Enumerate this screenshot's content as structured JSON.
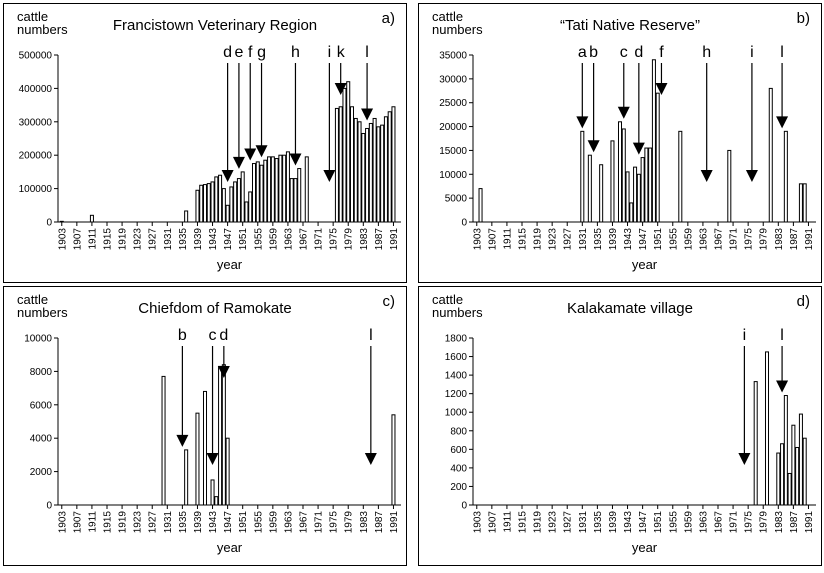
{
  "chart_data": [
    {
      "type": "bar",
      "title": "Francistown Veterinary Region",
      "panel": "a)",
      "ylabel": [
        "cattle",
        "numbers"
      ],
      "xlabel": "year",
      "x": [
        1903,
        1911,
        1936,
        1939,
        1940,
        1941,
        1942,
        1943,
        1944,
        1945,
        1946,
        1947,
        1948,
        1949,
        1950,
        1951,
        1952,
        1953,
        1954,
        1955,
        1956,
        1957,
        1958,
        1959,
        1960,
        1961,
        1962,
        1963,
        1964,
        1965,
        1966,
        1968,
        1976,
        1977,
        1978,
        1979,
        1980,
        1981,
        1982,
        1983,
        1984,
        1985,
        1986,
        1987,
        1988,
        1989,
        1990,
        1991
      ],
      "values": [
        2000,
        20000,
        33000,
        95000,
        110000,
        112000,
        115000,
        120000,
        135000,
        140000,
        100000,
        50000,
        105000,
        120000,
        130000,
        150000,
        60000,
        90000,
        175000,
        180000,
        170000,
        185000,
        195000,
        195000,
        190000,
        200000,
        200000,
        210000,
        130000,
        130000,
        160000,
        195000,
        340000,
        345000,
        400000,
        420000,
        345000,
        310000,
        300000,
        265000,
        280000,
        295000,
        310000,
        285000,
        290000,
        315000,
        330000,
        345000
      ],
      "xlim": [
        1902,
        1993
      ],
      "xticks": [
        1903,
        1907,
        1911,
        1915,
        1919,
        1923,
        1927,
        1931,
        1935,
        1939,
        1943,
        1947,
        1951,
        1955,
        1959,
        1963,
        1967,
        1971,
        1975,
        1979,
        1983,
        1987,
        1991
      ],
      "ylim": [
        0,
        500000
      ],
      "yticks": [
        0,
        100000,
        200000,
        300000,
        400000,
        500000
      ],
      "annotations": [
        {
          "label": "d",
          "x": 1947
        },
        {
          "label": "e",
          "x": 1950
        },
        {
          "label": "f",
          "x": 1953
        },
        {
          "label": "g",
          "x": 1956
        },
        {
          "label": "h",
          "x": 1965
        },
        {
          "label": "i",
          "x": 1974
        },
        {
          "label": "k",
          "x": 1977
        },
        {
          "label": "l",
          "x": 1984
        }
      ]
    },
    {
      "type": "bar",
      "title": "“Tati Native Reserve”",
      "panel": "b)",
      "ylabel": [
        "cattle",
        "numbers"
      ],
      "xlabel": "year",
      "x": [
        1904,
        1931,
        1933,
        1936,
        1939,
        1941,
        1942,
        1943,
        1944,
        1945,
        1946,
        1947,
        1948,
        1949,
        1950,
        1951,
        1957,
        1970,
        1981,
        1985,
        1989,
        1990
      ],
      "values": [
        7000,
        19000,
        14000,
        12000,
        17000,
        21000,
        19500,
        10500,
        4000,
        11500,
        10000,
        13500,
        15500,
        15500,
        34000,
        27000,
        19000,
        15000,
        28000,
        19000,
        8000,
        8000
      ],
      "xlim": [
        1902,
        1993
      ],
      "xticks": [
        1903,
        1907,
        1911,
        1915,
        1919,
        1923,
        1927,
        1931,
        1935,
        1939,
        1943,
        1947,
        1951,
        1955,
        1959,
        1963,
        1967,
        1971,
        1975,
        1979,
        1983,
        1987,
        1991
      ],
      "ylim": [
        0,
        35000
      ],
      "yticks": [
        0,
        5000,
        10000,
        15000,
        20000,
        25000,
        30000,
        35000
      ],
      "annotations": [
        {
          "label": "a",
          "x": 1931
        },
        {
          "label": "b",
          "x": 1934
        },
        {
          "label": "c",
          "x": 1942
        },
        {
          "label": "d",
          "x": 1946
        },
        {
          "label": "f",
          "x": 1952
        },
        {
          "label": "h",
          "x": 1964
        },
        {
          "label": "i",
          "x": 1976
        },
        {
          "label": "l",
          "x": 1984
        }
      ]
    },
    {
      "type": "bar",
      "title": "Chiefdom of Ramokate",
      "panel": "c)",
      "ylabel": [
        "cattle",
        "numbers"
      ],
      "xlabel": "year",
      "x": [
        1930,
        1936,
        1939,
        1941,
        1943,
        1944,
        1945,
        1946,
        1947,
        1991
      ],
      "values": [
        7700,
        3300,
        5500,
        6800,
        1500,
        500,
        8300,
        8400,
        4000,
        5400
      ],
      "xlim": [
        1902,
        1993
      ],
      "xticks": [
        1903,
        1907,
        1911,
        1915,
        1919,
        1923,
        1927,
        1931,
        1935,
        1939,
        1943,
        1947,
        1951,
        1955,
        1959,
        1963,
        1967,
        1971,
        1975,
        1979,
        1983,
        1987,
        1991
      ],
      "ylim": [
        0,
        10000
      ],
      "yticks": [
        0,
        2000,
        4000,
        6000,
        8000,
        10000
      ],
      "annotations": [
        {
          "label": "b",
          "x": 1935
        },
        {
          "label": "c",
          "x": 1943
        },
        {
          "label": "d",
          "x": 1946
        },
        {
          "label": "l",
          "x": 1985
        }
      ]
    },
    {
      "type": "bar",
      "title": "Kalakamate village",
      "panel": "d)",
      "ylabel": [
        "cattle",
        "numbers"
      ],
      "xlabel": "year",
      "x": [
        1977,
        1980,
        1983,
        1984,
        1985,
        1986,
        1987,
        1988,
        1989,
        1990
      ],
      "values": [
        1330,
        1650,
        560,
        660,
        1180,
        340,
        860,
        620,
        980,
        720
      ],
      "xlim": [
        1902,
        1993
      ],
      "xticks": [
        1903,
        1907,
        1911,
        1915,
        1919,
        1923,
        1927,
        1931,
        1935,
        1939,
        1943,
        1947,
        1951,
        1955,
        1959,
        1963,
        1967,
        1971,
        1975,
        1979,
        1983,
        1987,
        1991
      ],
      "ylim": [
        0,
        1800
      ],
      "yticks": [
        0,
        200,
        400,
        600,
        800,
        1000,
        1200,
        1400,
        1600,
        1800
      ],
      "annotations": [
        {
          "label": "i",
          "x": 1974
        },
        {
          "label": "l",
          "x": 1984
        }
      ]
    }
  ]
}
